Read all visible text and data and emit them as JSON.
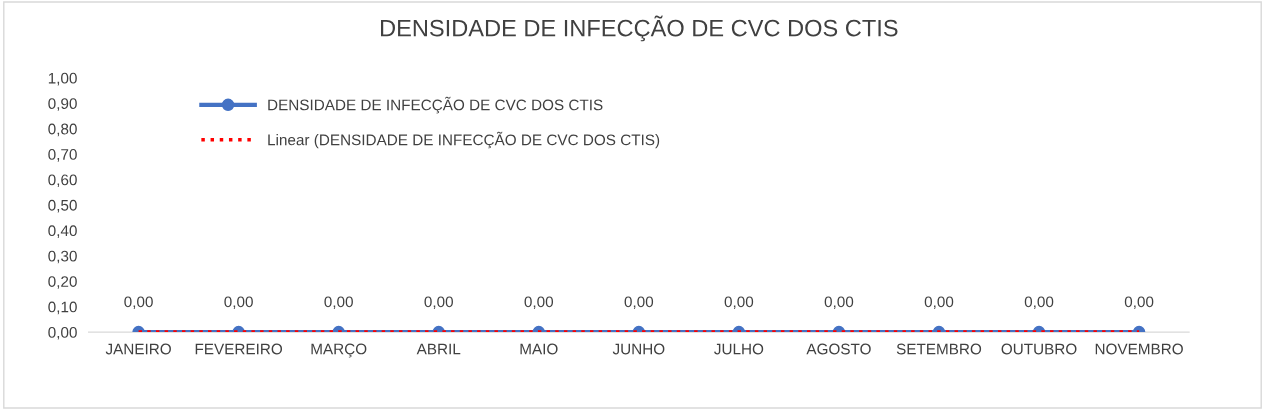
{
  "chart_data": {
    "type": "line",
    "title": "DENSIDADE DE INFECÇÃO DE CVC DOS CTIS",
    "categories": [
      "JANEIRO",
      "FEVEREIRO",
      "MARÇO",
      "ABRIL",
      "MAIO",
      "JUNHO",
      "JULHO",
      "AGOSTO",
      "SETEMBRO",
      "OUTUBRO",
      "NOVEMBRO"
    ],
    "series": [
      {
        "name": "DENSIDADE DE INFECÇÃO DE CVC DOS CTIS",
        "color": "#4472c4",
        "values": [
          0,
          0,
          0,
          0,
          0,
          0,
          0,
          0,
          0,
          0,
          0
        ],
        "marker": "circle",
        "line_style": "solid",
        "value_labels": [
          "0,00",
          "0,00",
          "0,00",
          "0,00",
          "0,00",
          "0,00",
          "0,00",
          "0,00",
          "0,00",
          "0,00",
          "0,00"
        ]
      },
      {
        "name": "Linear (DENSIDADE DE INFECÇÃO DE CVC DOS CTIS)",
        "color": "#ff0000",
        "values": [
          0,
          0,
          0,
          0,
          0,
          0,
          0,
          0,
          0,
          0,
          0
        ],
        "marker": "none",
        "line_style": "dotted"
      }
    ],
    "ylim": [
      0,
      1
    ],
    "yticks": [
      {
        "value": 0,
        "label": "0,00"
      },
      {
        "value": 0.1,
        "label": "0,10"
      },
      {
        "value": 0.2,
        "label": "0,20"
      },
      {
        "value": 0.3,
        "label": "0,30"
      },
      {
        "value": 0.4,
        "label": "0,40"
      },
      {
        "value": 0.5,
        "label": "0,50"
      },
      {
        "value": 0.6,
        "label": "0,60"
      },
      {
        "value": 0.7,
        "label": "0,70"
      },
      {
        "value": 0.8,
        "label": "0,80"
      },
      {
        "value": 0.9,
        "label": "0,90"
      },
      {
        "value": 1,
        "label": "1,00"
      }
    ],
    "grid": false,
    "legend": "top left"
  }
}
